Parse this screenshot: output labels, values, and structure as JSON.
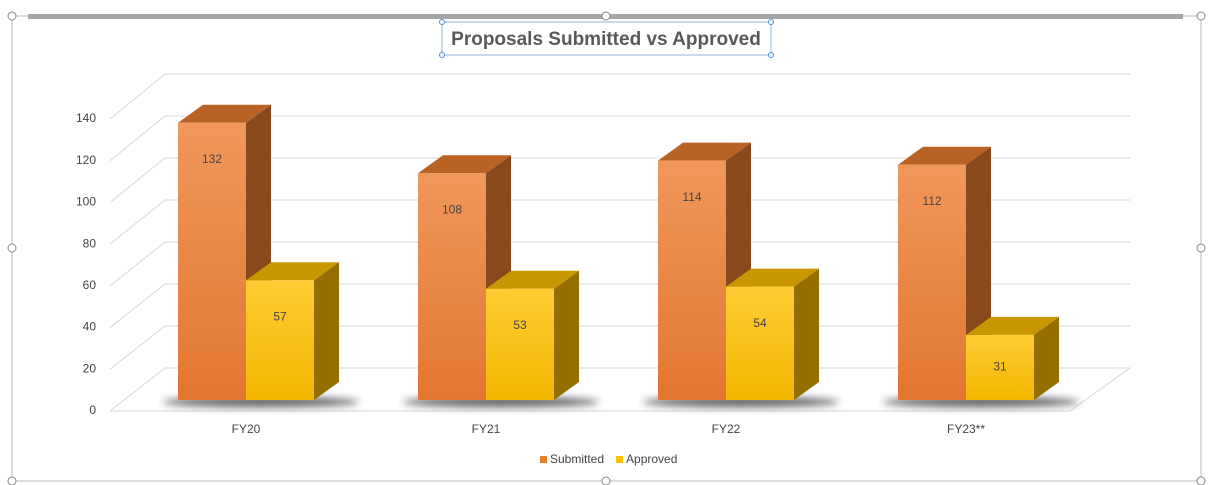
{
  "chart_data": {
    "type": "bar3d",
    "title": "Proposals Submitted vs Approved",
    "categories": [
      "FY20",
      "FY21",
      "FY22",
      "FY23**"
    ],
    "series": [
      {
        "name": "Submitted",
        "color": "#ED7D31",
        "values": [
          132,
          108,
          114,
          112
        ]
      },
      {
        "name": "Approved",
        "color": "#FFC000",
        "values": [
          57,
          53,
          54,
          31
        ]
      }
    ],
    "ylim": [
      0,
      140
    ],
    "yticks": [
      0,
      20,
      40,
      60,
      80,
      100,
      120,
      140
    ],
    "grid": true,
    "legend": "bottom"
  }
}
